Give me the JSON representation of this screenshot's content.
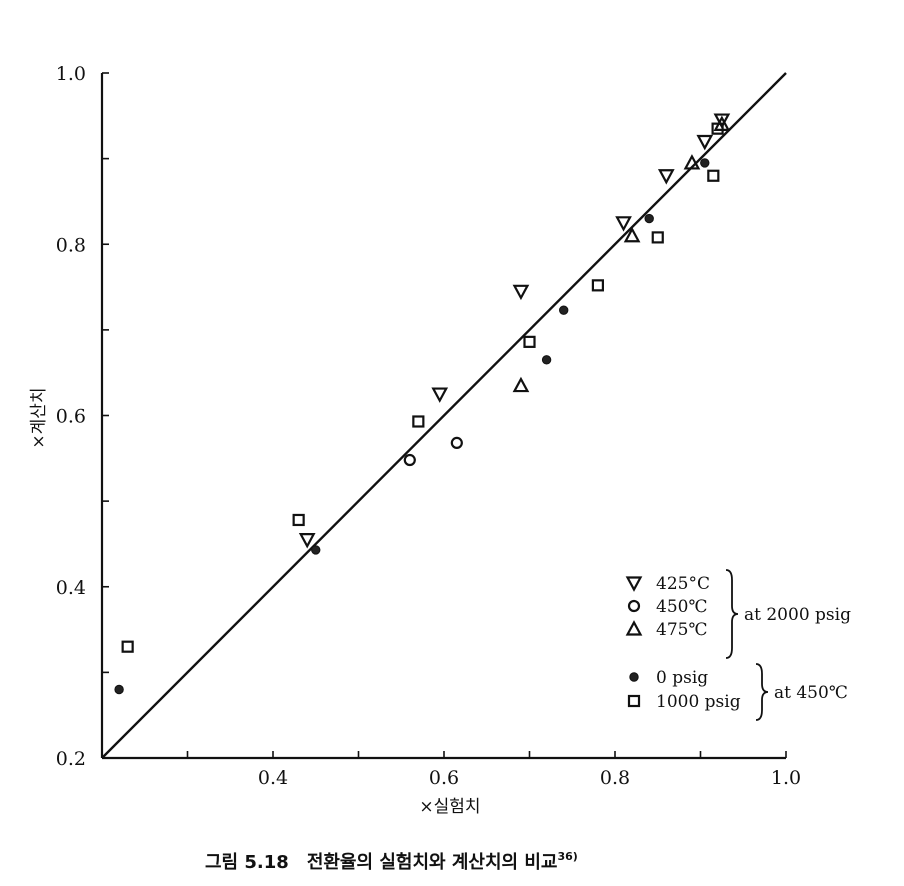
{
  "chart_data": {
    "type": "scatter",
    "xlabel": "×실험치",
    "ylabel": "×계산치",
    "xlim": [
      0.2,
      1.0
    ],
    "ylim": [
      0.2,
      1.0
    ],
    "x_ticks": [
      "0.4",
      "0.6",
      "0.8",
      "1.0"
    ],
    "y_ticks": [
      "0.2",
      "0.4",
      "0.6",
      "0.8",
      "1.0"
    ],
    "parity_line": [
      [
        0.2,
        0.2
      ],
      [
        1.0,
        1.0
      ]
    ],
    "legend": {
      "position": "bottom-right",
      "group_1_label": "at 2000 psig",
      "group_2_label": "at 450℃"
    },
    "series": [
      {
        "name": "425°C",
        "marker": "triangle-down",
        "points": [
          [
            0.44,
            0.455
          ],
          [
            0.595,
            0.625
          ],
          [
            0.69,
            0.745
          ],
          [
            0.81,
            0.825
          ],
          [
            0.86,
            0.88
          ],
          [
            0.905,
            0.92
          ],
          [
            0.925,
            0.945
          ]
        ]
      },
      {
        "name": "450℃",
        "marker": "circle",
        "points": [
          [
            0.56,
            0.548
          ],
          [
            0.615,
            0.568
          ]
        ]
      },
      {
        "name": "475℃",
        "marker": "triangle-up",
        "points": [
          [
            0.69,
            0.635
          ],
          [
            0.82,
            0.81
          ],
          [
            0.89,
            0.895
          ],
          [
            0.925,
            0.94
          ]
        ]
      },
      {
        "name": "0 psig",
        "marker": "filled-circle",
        "points": [
          [
            0.22,
            0.28
          ],
          [
            0.45,
            0.443
          ],
          [
            0.72,
            0.665
          ],
          [
            0.74,
            0.723
          ],
          [
            0.84,
            0.83
          ],
          [
            0.905,
            0.895
          ]
        ]
      },
      {
        "name": "1000 psig",
        "marker": "square",
        "points": [
          [
            0.23,
            0.33
          ],
          [
            0.43,
            0.478
          ],
          [
            0.57,
            0.593
          ],
          [
            0.7,
            0.686
          ],
          [
            0.78,
            0.752
          ],
          [
            0.85,
            0.808
          ],
          [
            0.915,
            0.88
          ],
          [
            0.92,
            0.935
          ]
        ]
      }
    ]
  },
  "caption": {
    "figure_number": "그림 5.18",
    "title": "전환율의 실험치와 계산치의 비교",
    "reference": "36)"
  }
}
